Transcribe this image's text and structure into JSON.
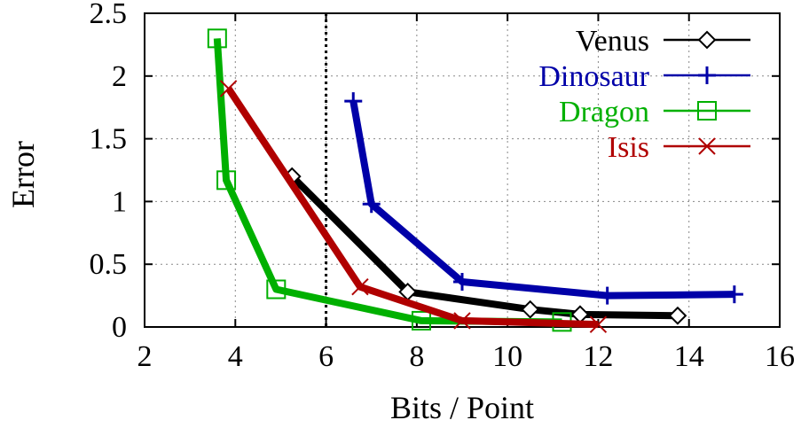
{
  "chart_data": {
    "type": "line",
    "title": "",
    "xlabel": "Bits / Point",
    "ylabel": "Error",
    "xlim": [
      2,
      16
    ],
    "ylim": [
      0,
      2.5
    ],
    "x_ticks": [
      2,
      4,
      6,
      8,
      10,
      12,
      14,
      16
    ],
    "y_ticks": [
      0,
      0.5,
      1,
      1.5,
      2,
      2.5
    ],
    "x_tick_labels": [
      "2",
      "4",
      "6",
      "8",
      "10",
      "12",
      "14",
      "16"
    ],
    "y_tick_labels": [
      "0",
      "0.5",
      "1",
      "1.5",
      "2",
      "2.5"
    ],
    "grid": true,
    "legend_position": "top-right",
    "reference_line": {
      "x": 6
    },
    "series": [
      {
        "name": "Venus",
        "color": "#000000",
        "marker": "diamond",
        "x": [
          5.25,
          7.8,
          10.5,
          11.6,
          13.75
        ],
        "y": [
          1.2,
          0.28,
          0.14,
          0.1,
          0.09
        ]
      },
      {
        "name": "Dinosaur",
        "color": "#0000a8",
        "marker": "plus",
        "x": [
          6.6,
          7.0,
          9.0,
          12.2,
          15.0
        ],
        "y": [
          1.8,
          0.98,
          0.36,
          0.25,
          0.26
        ]
      },
      {
        "name": "Dragon",
        "color": "#00b000",
        "marker": "square",
        "x": [
          3.6,
          3.8,
          4.9,
          8.1,
          11.2
        ],
        "y": [
          2.3,
          1.17,
          0.3,
          0.05,
          0.04
        ]
      },
      {
        "name": "Isis",
        "color": "#b00000",
        "marker": "cross",
        "x": [
          3.85,
          6.75,
          9.0,
          12.0
        ],
        "y": [
          1.9,
          0.32,
          0.05,
          0.02
        ]
      }
    ]
  }
}
